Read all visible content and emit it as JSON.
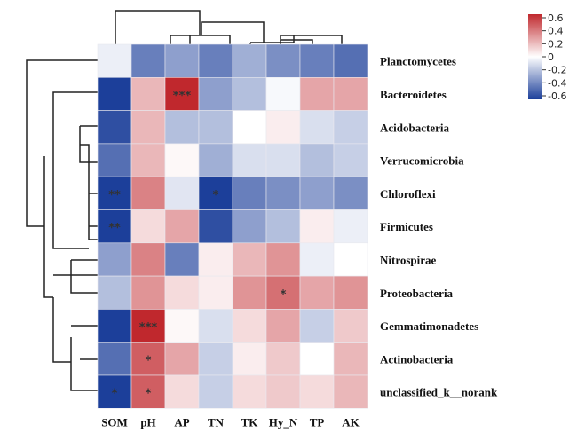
{
  "chart_data": {
    "type": "heatmap",
    "title": "",
    "columns": [
      "SOM",
      "pH",
      "AP",
      "TN",
      "TK",
      "Hy_N",
      "TP",
      "AK"
    ],
    "rows": [
      "Planctomycetes",
      "Bacteroidetes",
      "Acidobacteria",
      "Verrucomicrobia",
      "Chloroflexi",
      "Firmicutes",
      "Nitrospirae",
      "Proteobacteria",
      "Gemmatimonadetes",
      "Actinobacteria",
      "unclassified_k__norank"
    ],
    "values": [
      [
        -0.05,
        -0.4,
        -0.3,
        -0.4,
        -0.25,
        -0.35,
        -0.4,
        -0.45
      ],
      [
        -0.65,
        0.2,
        0.6,
        -0.3,
        -0.2,
        -0.02,
        0.25,
        0.25
      ],
      [
        -0.55,
        0.2,
        -0.2,
        -0.2,
        0.0,
        0.05,
        -0.1,
        -0.15
      ],
      [
        -0.45,
        0.2,
        0.02,
        -0.25,
        -0.1,
        -0.1,
        -0.2,
        -0.15
      ],
      [
        -0.7,
        0.35,
        -0.08,
        -0.6,
        -0.4,
        -0.35,
        -0.3,
        -0.35
      ],
      [
        -0.7,
        0.1,
        0.25,
        -0.55,
        -0.3,
        -0.2,
        0.05,
        -0.05
      ],
      [
        -0.3,
        0.35,
        -0.4,
        0.05,
        0.2,
        0.3,
        -0.05,
        0.0
      ],
      [
        -0.2,
        0.3,
        0.1,
        0.05,
        0.3,
        0.4,
        0.25,
        0.3
      ],
      [
        -0.65,
        0.6,
        0.02,
        -0.1,
        0.1,
        0.25,
        -0.15,
        0.15
      ],
      [
        -0.45,
        0.45,
        0.25,
        -0.15,
        0.05,
        0.15,
        0.0,
        0.2
      ],
      [
        -0.65,
        0.45,
        0.1,
        -0.15,
        0.1,
        0.15,
        0.1,
        0.2
      ]
    ],
    "significance": [
      [
        "",
        "",
        "",
        "",
        "",
        "",
        "",
        ""
      ],
      [
        "",
        "",
        "***",
        "",
        "",
        "",
        "",
        ""
      ],
      [
        "",
        "",
        "",
        "",
        "",
        "",
        "",
        ""
      ],
      [
        "",
        "",
        "",
        "",
        "",
        "",
        "",
        ""
      ],
      [
        "**",
        "",
        "",
        "*",
        "",
        "",
        "",
        ""
      ],
      [
        "**",
        "",
        "",
        "",
        "",
        "",
        "",
        ""
      ],
      [
        "",
        "",
        "",
        "",
        "",
        "",
        "",
        ""
      ],
      [
        "",
        "",
        "",
        "",
        "",
        "*",
        "",
        ""
      ],
      [
        "",
        "***",
        "",
        "",
        "",
        "",
        "",
        ""
      ],
      [
        "",
        "*",
        "",
        "",
        "",
        "",
        "",
        ""
      ],
      [
        "*",
        "*",
        "",
        "",
        "",
        "",
        "",
        ""
      ]
    ],
    "color_scale": {
      "min": -0.6,
      "max": 0.6,
      "low_color": "#1c3f9a",
      "mid_color": "#ffffff",
      "high_color": "#c0282d",
      "ticks": [
        "0.6",
        "0.4",
        "0.2",
        "0",
        "-0.2",
        "-0.4",
        "-0.6"
      ]
    },
    "legend_placement": "top-right",
    "dendrograms": "rows-left, columns-top"
  }
}
